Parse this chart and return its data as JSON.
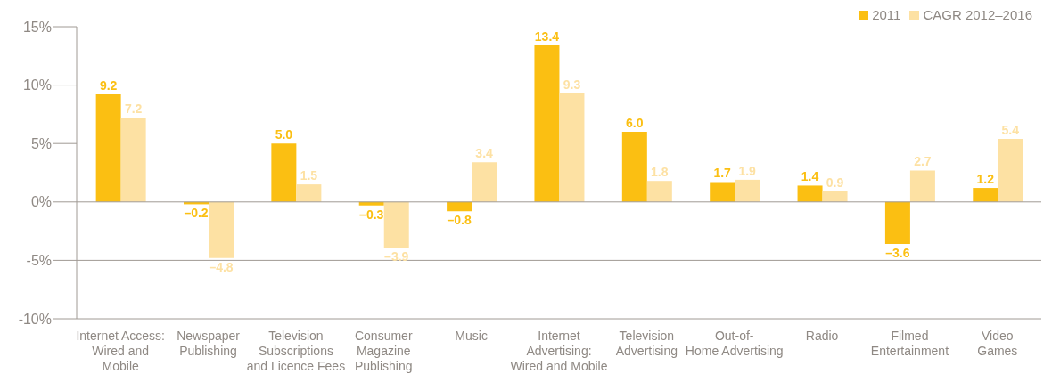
{
  "chart_data": {
    "type": "bar",
    "categories": [
      "Internet Access:\nWired and\nMobile",
      "Newspaper\nPublishing",
      "Television\nSubscriptions\nand Licence Fees",
      "Consumer\nMagazine\nPublishing",
      "Music",
      "Internet\nAdvertising:\nWired and Mobile",
      "Television\nAdvertising",
      "Out-of-\nHome Advertising",
      "Radio",
      "Filmed\nEntertainment",
      "Video\nGames"
    ],
    "series": [
      {
        "name": "2011",
        "color": "#fbbf12",
        "values": [
          9.2,
          -0.2,
          5.0,
          -0.3,
          -0.8,
          13.4,
          6.0,
          1.7,
          1.4,
          -3.6,
          1.2
        ],
        "value_labels": [
          "9.2",
          "–0.2",
          "5.0",
          "–0.3",
          "–0.8",
          "13.4",
          "6.0",
          "1.7",
          "1.4",
          "–3.6",
          "1.2"
        ]
      },
      {
        "name": "CAGR 2012–2016",
        "color": "#fde1a3",
        "values": [
          7.2,
          -4.8,
          1.5,
          -3.9,
          3.4,
          9.3,
          1.8,
          1.9,
          0.9,
          2.7,
          5.4
        ],
        "value_labels": [
          "7.2",
          "–4.8",
          "1.5",
          "–3.9",
          "3.4",
          "9.3",
          "1.8",
          "1.9",
          "0.9",
          "2.7",
          "5.4"
        ]
      }
    ],
    "ylim": [
      -10,
      15
    ],
    "yticks": [
      {
        "value": -10,
        "label": "-10%"
      },
      {
        "value": -5,
        "label": "-5%"
      },
      {
        "value": 0,
        "label": "0%"
      },
      {
        "value": 5,
        "label": "5%"
      },
      {
        "value": 10,
        "label": "10%"
      },
      {
        "value": 15,
        "label": "15%"
      }
    ],
    "ref_lines": [
      {
        "axis": "y",
        "value": 0,
        "color": "#a09a94"
      },
      {
        "axis": "y",
        "value": -5,
        "color": "#a09a94"
      }
    ],
    "grid": false,
    "legend": "top right"
  }
}
